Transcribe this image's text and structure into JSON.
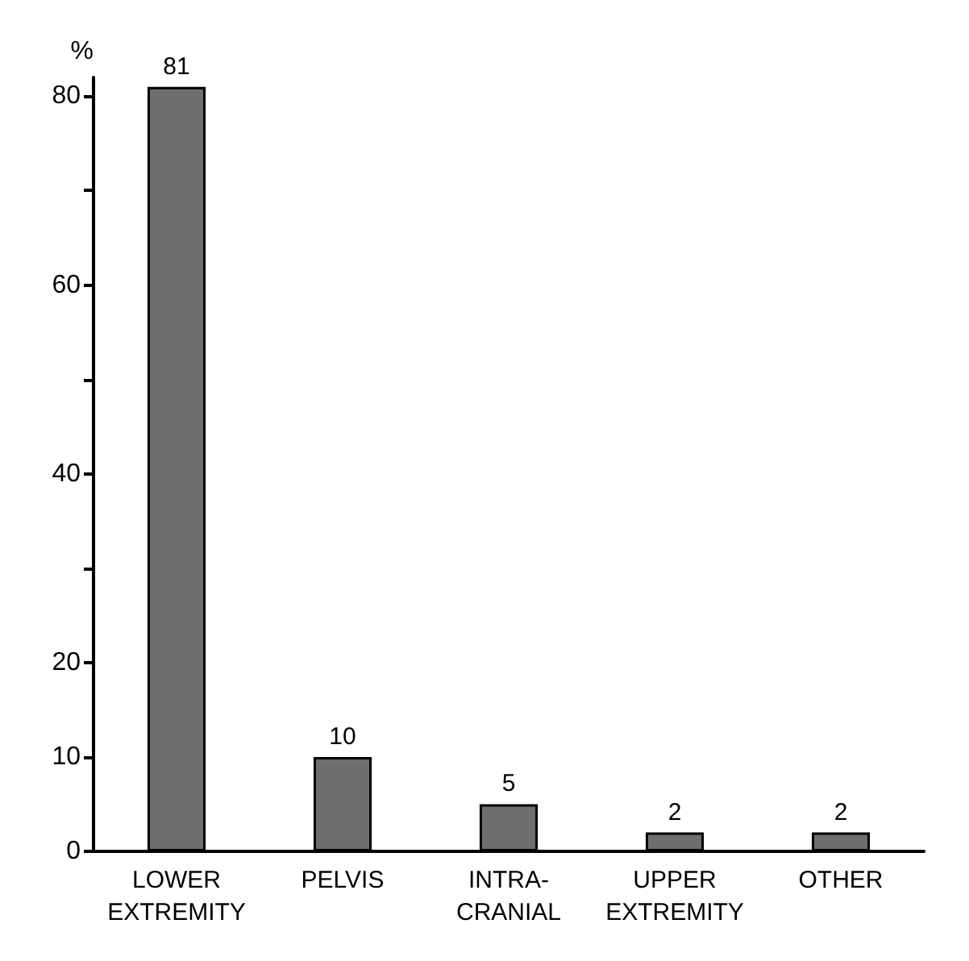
{
  "chart_data": {
    "type": "bar",
    "ylabel": "%",
    "categories": [
      "LOWER\nEXTREMITY",
      "PELVIS",
      "INTRA-\nCRANIAL",
      "UPPER\nEXTREMITY",
      "OTHER"
    ],
    "values": [
      81,
      10,
      5,
      2,
      2
    ],
    "color": "#6e6e6e",
    "ylim": [
      0,
      82
    ],
    "yticks": [
      0,
      10,
      20,
      {
        "value": 30,
        "label": null
      },
      40,
      {
        "value": 50,
        "label": null
      },
      60,
      {
        "value": 70,
        "label": null
      },
      80
    ],
    "data_labels": true,
    "grid": false
  }
}
